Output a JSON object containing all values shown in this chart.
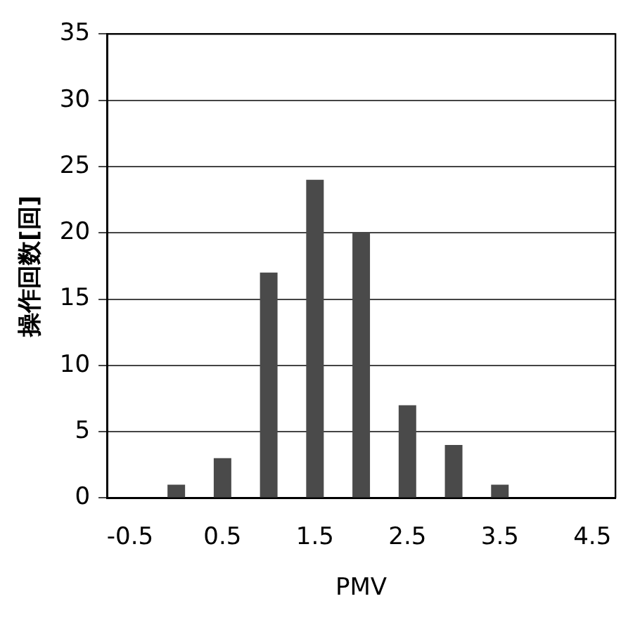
{
  "chart_data": {
    "type": "bar",
    "xlabel": "PMV",
    "ylabel": "操作回数[回]",
    "categories": [
      "-0.5",
      null,
      "0.5",
      null,
      "1.5",
      null,
      "2.5",
      null,
      "3.5",
      null,
      "4.5"
    ],
    "values": [
      0,
      1,
      3,
      17,
      24,
      20,
      7,
      4,
      1,
      0,
      0
    ],
    "color": "#4a4a4a",
    "ylim": [
      0,
      35
    ],
    "yticks": [
      0,
      5,
      10,
      15,
      20,
      25,
      30,
      35
    ],
    "grid": "y",
    "legend": false
  }
}
